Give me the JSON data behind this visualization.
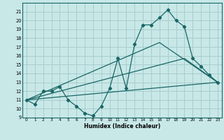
{
  "xlabel": "Humidex (Indice chaleur)",
  "bg_color": "#c8e8e8",
  "grid_color": "#aacccc",
  "line_color": "#1a6666",
  "xlim": [
    -0.5,
    23.5
  ],
  "ylim": [
    9,
    22
  ],
  "yticks": [
    9,
    10,
    11,
    12,
    13,
    14,
    15,
    16,
    17,
    18,
    19,
    20,
    21
  ],
  "xticks": [
    0,
    1,
    2,
    3,
    4,
    5,
    6,
    7,
    8,
    9,
    10,
    11,
    12,
    13,
    14,
    15,
    16,
    17,
    18,
    19,
    20,
    21,
    22,
    23
  ],
  "series1_x": [
    0,
    1,
    2,
    3,
    4,
    5,
    6,
    7,
    8,
    9,
    10,
    11,
    12,
    13,
    14,
    15,
    16,
    17,
    18,
    19,
    20,
    21,
    22,
    23
  ],
  "series1_y": [
    11.0,
    10.5,
    12.0,
    12.0,
    12.5,
    11.0,
    10.3,
    9.5,
    9.2,
    10.3,
    12.3,
    15.7,
    12.3,
    17.3,
    19.5,
    19.5,
    20.3,
    21.2,
    20.0,
    19.3,
    15.7,
    14.8,
    13.8,
    13.0
  ],
  "series2_x": [
    0,
    23
  ],
  "series2_y": [
    11.0,
    13.0
  ],
  "series3_x": [
    0,
    19,
    23
  ],
  "series3_y": [
    11.0,
    15.7,
    13.0
  ],
  "series4_x": [
    0,
    16,
    23
  ],
  "series4_y": [
    11.0,
    17.5,
    13.0
  ]
}
